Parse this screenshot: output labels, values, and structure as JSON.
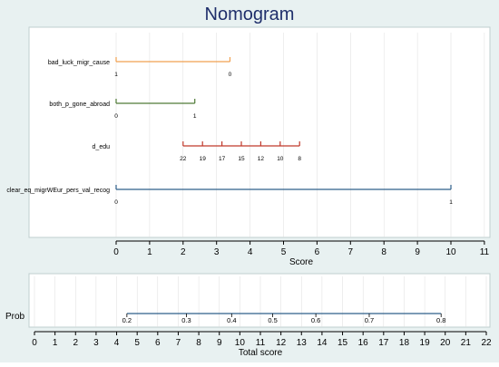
{
  "title": "Nomogram",
  "colors": {
    "background": "#e8f1f1",
    "panel": "#ffffff",
    "axis": "#000000",
    "grid": "#dddddd"
  },
  "chart_data": [
    {
      "type": "nomogram-points",
      "xlabel": "Score",
      "xlim": [
        0,
        11
      ],
      "ticks": [
        0,
        1,
        2,
        3,
        4,
        5,
        6,
        7,
        8,
        9,
        10,
        11
      ],
      "grid": true,
      "variables": [
        {
          "name": "bad_luck_migr_cause",
          "color": "#f0a050",
          "points": [
            {
              "label": "1",
              "score": 0
            },
            {
              "label": "0",
              "score": 3.4
            }
          ]
        },
        {
          "name": "both_p_gone_abroad",
          "color": "#4f7a37",
          "points": [
            {
              "label": "0",
              "score": 0
            },
            {
              "label": "1",
              "score": 2.35
            }
          ]
        },
        {
          "name": "d_edu",
          "color": "#c0392b",
          "points": [
            {
              "label": "22",
              "score": 2.0
            },
            {
              "label": "19",
              "score": 2.58
            },
            {
              "label": "17",
              "score": 3.16
            },
            {
              "label": "15",
              "score": 3.74
            },
            {
              "label": "12",
              "score": 4.32
            },
            {
              "label": "10",
              "score": 4.9
            },
            {
              "label": "8",
              "score": 5.48
            }
          ]
        },
        {
          "name": "clear_eq_migrWEur_pers_val_recog",
          "color": "#2f5f8a",
          "points": [
            {
              "label": "0",
              "score": 0
            },
            {
              "label": "1",
              "score": 10
            }
          ]
        }
      ]
    },
    {
      "type": "nomogram-probability",
      "xlabel": "Total score",
      "ylabel": "Prob",
      "xlim": [
        0,
        22
      ],
      "ticks": [
        0,
        1,
        2,
        3,
        4,
        5,
        6,
        7,
        8,
        9,
        10,
        11,
        12,
        13,
        14,
        15,
        16,
        17,
        18,
        19,
        20,
        21,
        22
      ],
      "grid": true,
      "line_color": "#2f5f8a",
      "line_range": [
        4.5,
        19.8
      ],
      "points": [
        {
          "label": "0.2",
          "score": 4.5
        },
        {
          "label": "0.3",
          "score": 7.4
        },
        {
          "label": "0.4",
          "score": 9.6
        },
        {
          "label": "0.5",
          "score": 11.6
        },
        {
          "label": "0.6",
          "score": 13.7
        },
        {
          "label": "0.7",
          "score": 16.3
        },
        {
          "label": "0.8",
          "score": 19.8
        }
      ]
    }
  ]
}
